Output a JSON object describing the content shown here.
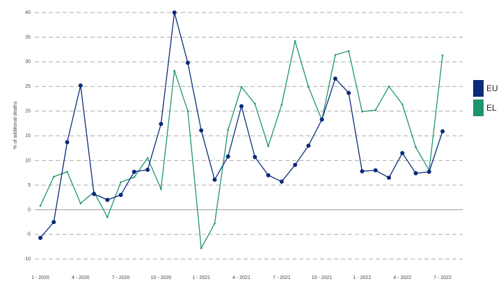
{
  "chart_data": {
    "type": "line",
    "y_label": "% of additional deaths",
    "categories": [
      "1 - 2020",
      null,
      null,
      "4 - 2020",
      null,
      null,
      "7 - 2020",
      null,
      null,
      "10 - 2020",
      null,
      null,
      "1 - 2021",
      null,
      null,
      "4 - 2021",
      null,
      null,
      "7 - 2021",
      null,
      null,
      "10 - 2021",
      null,
      null,
      "1 - 2022",
      null,
      null,
      "4 - 2022",
      null,
      null,
      "7 - 2022"
    ],
    "series": [
      {
        "name": "EU",
        "color": "#0b2a7c",
        "markers": true,
        "values": [
          -5.7,
          -2.5,
          13.7,
          25.2,
          3.2,
          2.0,
          3.0,
          7.7,
          8.1,
          17.4,
          40,
          29.8,
          16.1,
          6.1,
          10.8,
          21.0,
          10.7,
          7.0,
          5.7,
          9.1,
          13.0,
          18.3,
          26.6,
          23.7,
          7.8,
          8.0,
          6.5,
          11.5,
          7.4,
          7.7,
          15.9
        ]
      },
      {
        "name": "EL",
        "color": "#1d9470",
        "markers": false,
        "values": [
          0.8,
          6.7,
          7.7,
          1.3,
          3.6,
          -1.5,
          5.6,
          6.6,
          10.5,
          4.2,
          28.2,
          20.0,
          -7.8,
          -2.8,
          16.2,
          24.9,
          21.5,
          12.9,
          21.3,
          34.2,
          24.9,
          18.2,
          31.4,
          32.2,
          19.9,
          20.2,
          25.0,
          21.4,
          12.7,
          8.0,
          31.3
        ]
      }
    ],
    "ylim": [
      -12.5,
      40
    ],
    "yticks": [
      -10,
      -5,
      0,
      5,
      10,
      15,
      20,
      25,
      30,
      35,
      40
    ],
    "grid": true,
    "legend": "right"
  }
}
